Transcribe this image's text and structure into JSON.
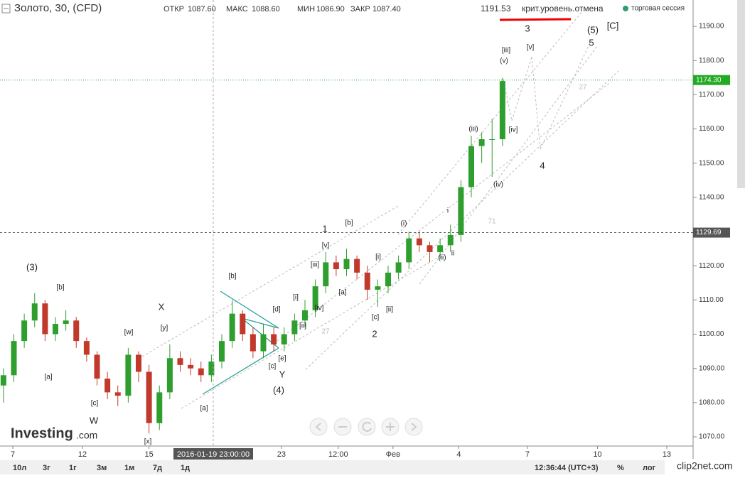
{
  "header": {
    "symbol": "Золото, 30, (CFD)",
    "open_label": "ОТКР",
    "open": "1087.60",
    "high_label": "МАКС",
    "high": "1088.60",
    "low_label": "МИН",
    "low": "1086.90",
    "close_label": "ЗАКР",
    "close": "1087.40",
    "level": "1191.53",
    "level_note": "крит.уровень.отмена",
    "session": "торговая сессия"
  },
  "toolbar": {
    "ranges": [
      "10л",
      "3г",
      "1г",
      "3м",
      "1м",
      "7д",
      "1д"
    ],
    "clock": "12:36:44 (UTC+3)",
    "percent": "%",
    "log": "лог"
  },
  "logo": {
    "name": "Investing",
    "suffix": ".com"
  },
  "watermark": "clip2net.com",
  "chart_data": {
    "type": "candlestick",
    "up_color": "#2e9e2e",
    "down_color": "#c0392b",
    "x": [
      0.5,
      2,
      3.5,
      5,
      6.5,
      8,
      9.5,
      11,
      12.5,
      14,
      15.5,
      17,
      18.5,
      20,
      21.5,
      23,
      24.5,
      26,
      27.5,
      29,
      30.5,
      32,
      33.5,
      35,
      36.5,
      38,
      39.5,
      41,
      42.5,
      44,
      45.5,
      47,
      48.5,
      50,
      51.5,
      53,
      54.5,
      56,
      57.5,
      59,
      60.5,
      62,
      63.5,
      65,
      66.5,
      68,
      69.5,
      71,
      72.5
    ],
    "open": [
      1085,
      1088,
      1098,
      1104,
      1109,
      1100,
      1103,
      1104,
      1098,
      1094,
      1087,
      1083,
      1082,
      1094,
      1089,
      1074,
      1083,
      1093,
      1091,
      1090,
      1088,
      1092,
      1098,
      1106,
      1100,
      1095,
      1100,
      1097,
      1100,
      1104,
      1107,
      1114,
      1121,
      1119,
      1122,
      1118,
      1113,
      1114,
      1118,
      1121,
      1128,
      1126,
      1124,
      1126,
      1129,
      1143,
      1155,
      1157,
      1157
    ],
    "high": [
      1090,
      1100,
      1106,
      1112,
      1110,
      1105,
      1107,
      1105,
      1099,
      1095,
      1089,
      1085,
      1096,
      1095,
      1091,
      1085,
      1097,
      1095,
      1093,
      1092,
      1094,
      1100,
      1110,
      1107,
      1102,
      1103,
      1102,
      1102,
      1106,
      1110,
      1116,
      1124,
      1123,
      1125,
      1123,
      1120,
      1116,
      1120,
      1123,
      1130,
      1130,
      1127,
      1128,
      1132,
      1145,
      1158,
      1159,
      1163,
      1175
    ],
    "low": [
      1080,
      1086,
      1096,
      1102,
      1098,
      1098,
      1101,
      1096,
      1092,
      1085,
      1081,
      1079,
      1080,
      1086,
      1071,
      1072,
      1081,
      1089,
      1088,
      1086,
      1086,
      1090,
      1096,
      1098,
      1093,
      1093,
      1095,
      1095,
      1098,
      1102,
      1105,
      1112,
      1117,
      1117,
      1116,
      1110,
      1108,
      1112,
      1116,
      1119,
      1124,
      1121,
      1122,
      1124,
      1127,
      1140,
      1150,
      1146,
      1155
    ],
    "close": [
      1088,
      1098,
      1104,
      1109,
      1100,
      1103,
      1104,
      1098,
      1094,
      1087,
      1083,
      1082,
      1094,
      1089,
      1074,
      1083,
      1093,
      1091,
      1090,
      1088,
      1092,
      1098,
      1106,
      1100,
      1095,
      1100,
      1097,
      1100,
      1104,
      1107,
      1114,
      1121,
      1119,
      1122,
      1118,
      1113,
      1114,
      1118,
      1121,
      1128,
      1126,
      1124,
      1126,
      1129,
      1143,
      1155,
      1157,
      1157,
      1174
    ],
    "xlim": [
      0,
      100
    ],
    "xticks": [
      {
        "value": 1.85,
        "label": "7"
      },
      {
        "value": 11.9,
        "label": "12"
      },
      {
        "value": 21.5,
        "label": "15"
      },
      {
        "value": 40.6,
        "label": "23"
      },
      {
        "value": 48.8,
        "label": "12:00"
      },
      {
        "value": 56.7,
        "label": "Фев"
      },
      {
        "value": 66.2,
        "label": "4"
      },
      {
        "value": 76.1,
        "label": "7"
      },
      {
        "value": 86.2,
        "label": "10"
      },
      {
        "value": 96.2,
        "label": "13"
      }
    ],
    "ylim": [
      1067.3,
      1197.7
    ],
    "yticks": [
      {
        "value": 1070,
        "label": "1070.00"
      },
      {
        "value": 1080,
        "label": "1080.00"
      },
      {
        "value": 1090,
        "label": "1090.00"
      },
      {
        "value": 1100,
        "label": "1100.00"
      },
      {
        "value": 1110,
        "label": "1110.00"
      },
      {
        "value": 1120,
        "label": "1120.00"
      },
      {
        "value": 1130,
        "label": "1130.00"
      },
      {
        "value": 1140,
        "label": "1140.00"
      },
      {
        "value": 1150,
        "label": "1150.00"
      },
      {
        "value": 1160,
        "label": "1160.00"
      },
      {
        "value": 1170,
        "label": "1170.00"
      },
      {
        "value": 1180,
        "label": "1180.00"
      },
      {
        "value": 1190,
        "label": "1190.00"
      }
    ],
    "price_lines": [
      {
        "value": 1174.3,
        "label": "1174.30",
        "color": "#22aa22"
      },
      {
        "value": 1129.69,
        "label": "1129.69",
        "color": "#555555"
      }
    ],
    "crosshair_x": {
      "value": 30.77,
      "label": "2016-01-19 23:00:00"
    },
    "annotations": [
      "(3)",
      "[b]",
      "[a]",
      "[c]",
      "W",
      "[w]",
      "X",
      "[y]",
      "[x]",
      "[b]",
      "[a]",
      "[d]",
      "[c]",
      "[e]",
      "Y",
      "(4)",
      "27",
      "[i]",
      "[ii]",
      "[iii]",
      "[iv]",
      "[v]",
      "1",
      "[b]",
      "[a]",
      "[i]",
      "[c]",
      "[ii]",
      "2",
      "(i)",
      "(ii)",
      "ii",
      "i",
      "71",
      "(iii)",
      "[iv]",
      "(iv)",
      "[iii]",
      "(v)",
      "[v]",
      "3",
      "(5)",
      "5",
      "[C]",
      "27",
      "4"
    ]
  }
}
